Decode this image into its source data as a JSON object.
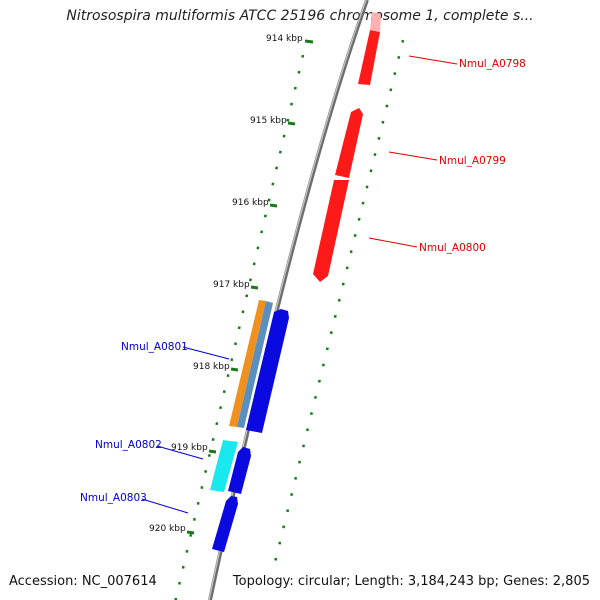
{
  "title": "Nitrosospira multiformis ATCC 25196 chromosome 1, complete s...",
  "accession": "Accession: NC_007614",
  "summary": "Topology: circular; Length: 3,184,243 bp; Genes: 2,805",
  "ticks": [
    "914 kbp",
    "915 kbp",
    "916 kbp",
    "917 kbp",
    "918 kbp",
    "919 kbp",
    "920 kbp"
  ],
  "genes": [
    {
      "label": "Nmul_A0798",
      "strand": "forward",
      "color": "#e00000"
    },
    {
      "label": "Nmul_A0799",
      "strand": "forward",
      "color": "#e00000"
    },
    {
      "label": "Nmul_A0800",
      "strand": "forward",
      "color": "#e00000"
    },
    {
      "label": "Nmul_A0801",
      "strand": "reverse",
      "color": "#0000cc"
    },
    {
      "label": "Nmul_A0802",
      "strand": "reverse",
      "color": "#0000cc"
    },
    {
      "label": "Nmul_A0803",
      "strand": "reverse",
      "color": "#0000cc"
    }
  ],
  "colors": {
    "forward_gene": "#ff1a1a",
    "reverse_gene": "#0a0ae0",
    "orange_feature": "#f0901e",
    "steelblue_feature": "#5a8fc0",
    "cyan_feature": "#19e8ee",
    "tick": "#1a7a1a",
    "backbone": "#8a8a8a"
  }
}
